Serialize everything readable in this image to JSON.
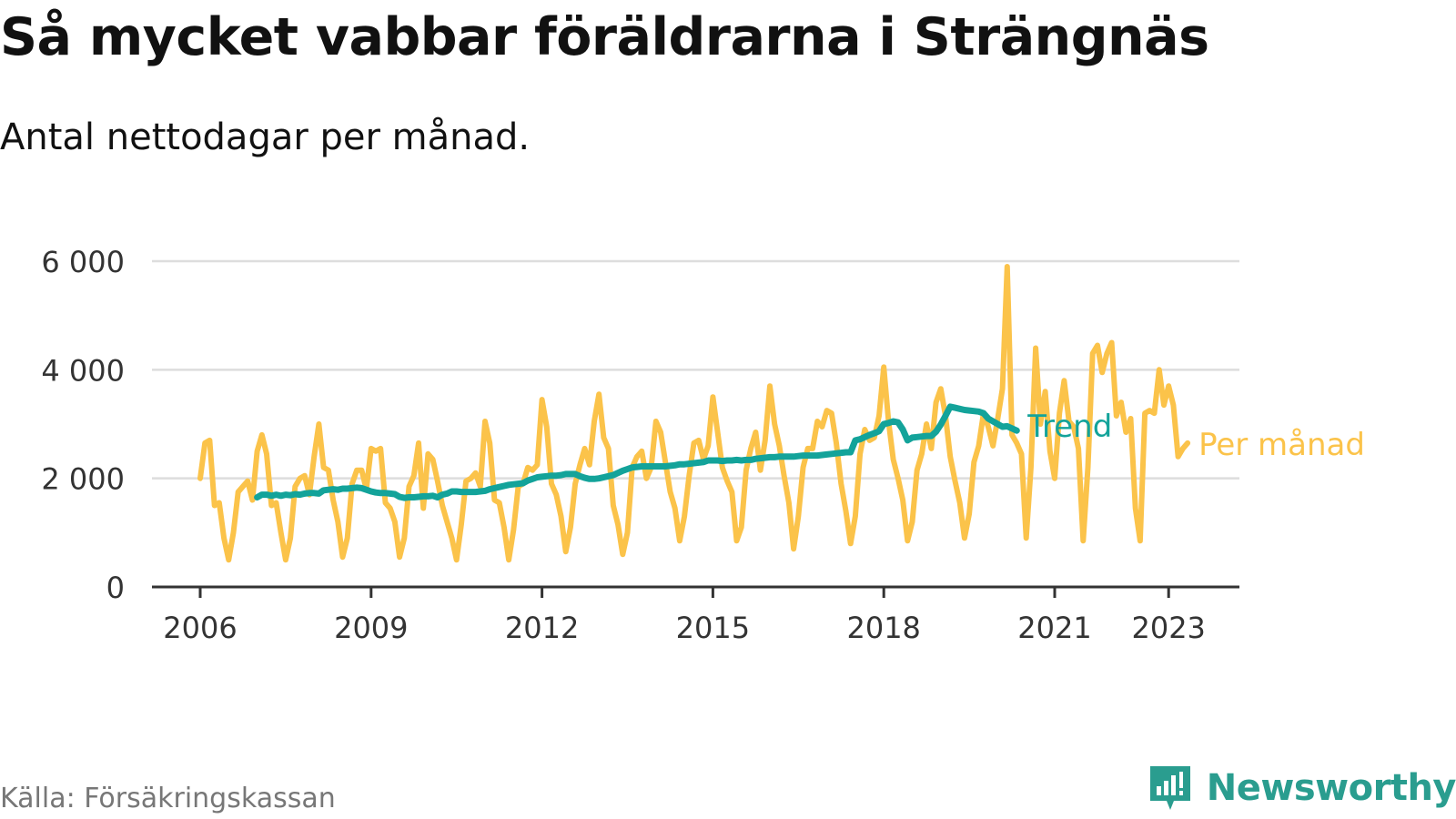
{
  "header": {
    "title": "Så mycket vabbar föräldrarna i Strängnäs",
    "subtitle": "Antal nettodagar per månad."
  },
  "footer": {
    "source": "Källa: Försäkringskassan",
    "brand": "Newsworthy",
    "brand_icon": "newsworthy-logo-icon"
  },
  "colors": {
    "per_month": "#fbc34a",
    "trend": "#13a39a",
    "grid": "#dddddd",
    "axis": "#333333",
    "brand": "#2a9d8f"
  },
  "chart_data": {
    "type": "line",
    "title": "Så mycket vabbar föräldrarna i Strängnäs",
    "subtitle": "Antal nettodagar per månad.",
    "xlabel": "",
    "ylabel": "",
    "x_ticks": [
      "2006",
      "2009",
      "2012",
      "2015",
      "2018",
      "2021",
      "2023"
    ],
    "y_ticks": [
      "0",
      "2 000",
      "4 000",
      "6 000"
    ],
    "ylim": [
      0,
      6000
    ],
    "grid": true,
    "legend": "inline-right",
    "series": [
      {
        "name": "Per månad",
        "start": "2006-01",
        "values": [
          2000,
          2650,
          2700,
          1500,
          1550,
          900,
          500,
          1000,
          1750,
          1850,
          1950,
          1600,
          2500,
          2800,
          2450,
          1500,
          1550,
          1000,
          500,
          900,
          1850,
          2000,
          2050,
          1700,
          2400,
          3000,
          2200,
          2150,
          1600,
          1200,
          550,
          900,
          1900,
          2150,
          2150,
          1800,
          2550,
          2500,
          2550,
          1550,
          1450,
          1200,
          550,
          900,
          1850,
          2050,
          2650,
          1450,
          2450,
          2350,
          1950,
          1500,
          1200,
          900,
          500,
          1150,
          1950,
          2000,
          2100,
          1850,
          3050,
          2650,
          1600,
          1550,
          1100,
          500,
          1050,
          1850,
          1900,
          2200,
          2150,
          2250,
          3450,
          2950,
          1900,
          1700,
          1300,
          650,
          1100,
          1900,
          2250,
          2550,
          2250,
          3050,
          3550,
          2750,
          2550,
          1500,
          1150,
          600,
          1000,
          2200,
          2400,
          2500,
          2000,
          2200,
          3050,
          2850,
          2300,
          1750,
          1450,
          850,
          1300,
          2050,
          2650,
          2700,
          2350,
          2600,
          3500,
          2850,
          2200,
          1950,
          1750,
          850,
          1100,
          2150,
          2550,
          2850,
          2150,
          2700,
          3700,
          3000,
          2600,
          2050,
          1550,
          700,
          1300,
          2200,
          2550,
          2550,
          3050,
          2950,
          3250,
          3200,
          2650,
          1900,
          1400,
          800,
          1300,
          2450,
          2900,
          2700,
          2750,
          3150,
          4050,
          3050,
          2350,
          2000,
          1600,
          850,
          1200,
          2150,
          2450,
          3000,
          2550,
          3400,
          3650,
          3150,
          2400,
          1950,
          1550,
          900,
          1350,
          2300,
          2600,
          3200,
          2950,
          2600,
          3100,
          3650,
          5900,
          2800,
          2650,
          2450,
          900,
          2200,
          4400,
          3000,
          3600,
          2500,
          2000,
          3200,
          3800,
          3050,
          2950,
          2550,
          850,
          2200,
          4300,
          4450,
          3950,
          4300,
          4500,
          3150,
          3400,
          2850,
          3100,
          1450,
          850,
          3200,
          3250,
          3200,
          4000,
          3350,
          3700,
          3350,
          2400,
          2550,
          2650
        ]
      },
      {
        "name": "Trend",
        "start": "2007-01",
        "values": [
          1650,
          1700,
          1700,
          1680,
          1700,
          1680,
          1700,
          1690,
          1710,
          1700,
          1720,
          1730,
          1730,
          1720,
          1780,
          1790,
          1800,
          1790,
          1810,
          1810,
          1820,
          1830,
          1820,
          1790,
          1760,
          1740,
          1730,
          1730,
          1720,
          1710,
          1660,
          1640,
          1650,
          1650,
          1660,
          1670,
          1670,
          1680,
          1650,
          1700,
          1720,
          1760,
          1760,
          1750,
          1750,
          1750,
          1750,
          1760,
          1770,
          1800,
          1820,
          1840,
          1860,
          1880,
          1890,
          1900,
          1910,
          1960,
          1990,
          2020,
          2030,
          2040,
          2050,
          2050,
          2060,
          2080,
          2080,
          2080,
          2040,
          2010,
          1990,
          1990,
          2000,
          2020,
          2040,
          2060,
          2100,
          2140,
          2170,
          2200,
          2210,
          2220,
          2220,
          2220,
          2220,
          2220,
          2220,
          2230,
          2240,
          2260,
          2260,
          2270,
          2280,
          2290,
          2300,
          2330,
          2330,
          2330,
          2320,
          2330,
          2330,
          2340,
          2330,
          2340,
          2340,
          2360,
          2370,
          2380,
          2390,
          2390,
          2400,
          2400,
          2400,
          2400,
          2410,
          2420,
          2420,
          2420,
          2420,
          2430,
          2440,
          2450,
          2460,
          2470,
          2480,
          2480,
          2700,
          2720,
          2760,
          2800,
          2830,
          2870,
          3000,
          3020,
          3050,
          3030,
          2900,
          2700,
          2750,
          2760,
          2770,
          2780,
          2780,
          2860,
          2990,
          3150,
          3320,
          3300,
          3280,
          3260,
          3250,
          3240,
          3230,
          3200,
          3100,
          3050,
          3000,
          2950,
          2960,
          2920,
          2880
        ]
      }
    ]
  }
}
